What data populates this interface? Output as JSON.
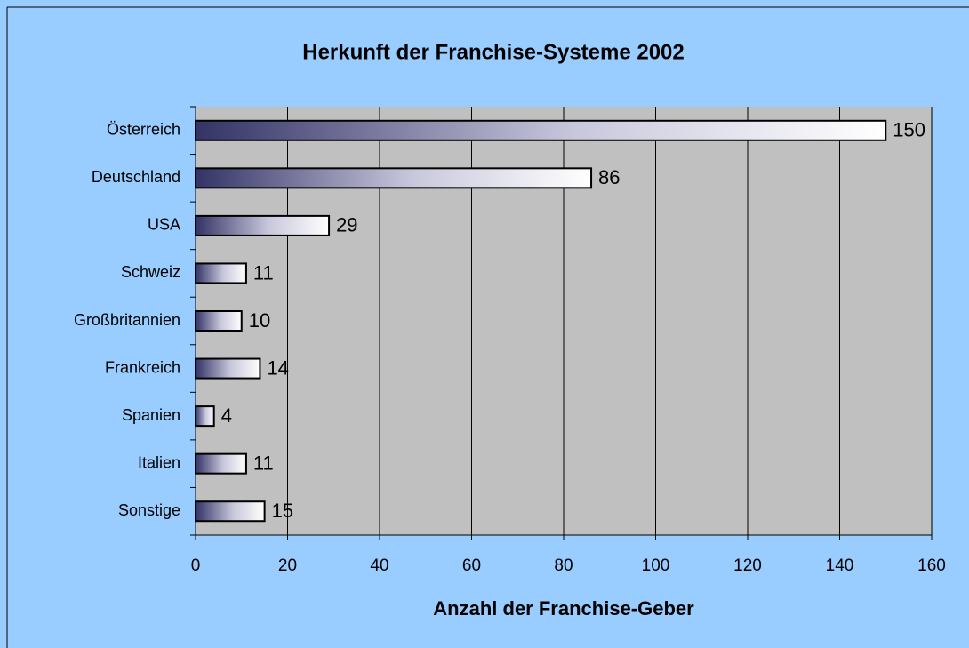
{
  "chart_data": {
    "type": "barh",
    "title": "Herkunft der Franchise-Systeme 2002",
    "x_label": "Anzahl der Franchise-Geber",
    "categories": [
      "Österreich",
      "Deutschland",
      "USA",
      "Schweiz",
      "Großbritannien",
      "Frankreich",
      "Spanien",
      "Italien",
      "Sonstige"
    ],
    "values": [
      150,
      86,
      29,
      11,
      10,
      14,
      4,
      11,
      15
    ],
    "xlim": [
      0,
      160
    ],
    "xticks": [
      0,
      20,
      40,
      60,
      80,
      100,
      120,
      140,
      160
    ],
    "grid": true,
    "color": "#333366"
  }
}
